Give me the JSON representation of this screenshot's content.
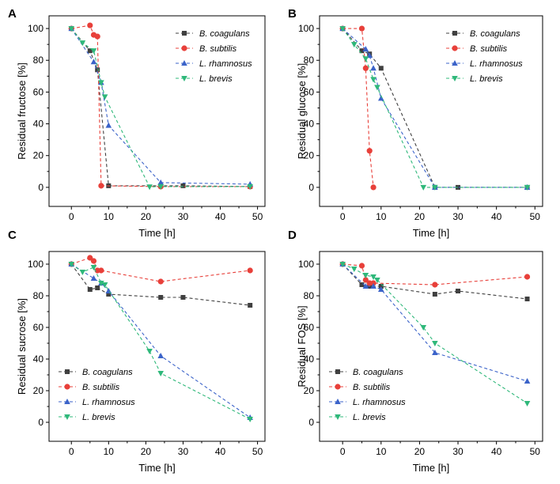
{
  "figure": {
    "series_styles": [
      {
        "name": "B. coagulans",
        "color": "#404040",
        "marker": "square"
      },
      {
        "name": "B. subtilis",
        "color": "#e8403a",
        "marker": "circle"
      },
      {
        "name": "L. rhamnosus",
        "color": "#3b63c9",
        "marker": "triangle-up"
      },
      {
        "name": "L. brevis",
        "color": "#2fb87a",
        "marker": "triangle-down"
      }
    ]
  },
  "chart_data": [
    {
      "panel": "A",
      "type": "line",
      "xlabel": "Time [h]",
      "ylabel": "Residual fructose [%]",
      "xlim": [
        -6,
        52
      ],
      "ylim": [
        -12,
        108
      ],
      "xticks": [
        0,
        10,
        20,
        30,
        40,
        50
      ],
      "yticks": [
        0,
        20,
        40,
        60,
        80,
        100
      ],
      "legend_position": "top-right",
      "series": [
        {
          "name": "B. coagulans",
          "x": [
            0,
            5,
            7,
            10,
            24,
            30,
            48
          ],
          "y": [
            100,
            86,
            74,
            1,
            1,
            1,
            0.5
          ]
        },
        {
          "name": "B. subtilis",
          "x": [
            0,
            5,
            6,
            7,
            8,
            24,
            48
          ],
          "y": [
            100,
            102,
            96,
            95,
            1,
            0.5,
            0.5
          ]
        },
        {
          "name": "L. rhamnosus",
          "x": [
            0,
            6,
            8,
            10,
            24,
            48
          ],
          "y": [
            100,
            79,
            66,
            39,
            3,
            2
          ]
        },
        {
          "name": "L. brevis",
          "x": [
            0,
            3,
            6,
            8,
            9,
            21,
            24,
            48
          ],
          "y": [
            100,
            91,
            86,
            66,
            57,
            0.3,
            0.5,
            0.5
          ]
        }
      ]
    },
    {
      "panel": "B",
      "type": "line",
      "xlabel": "Time [h]",
      "ylabel": "Residual glucose [%]",
      "xlim": [
        -6,
        52
      ],
      "ylim": [
        -12,
        108
      ],
      "xticks": [
        0,
        10,
        20,
        30,
        40,
        50
      ],
      "yticks": [
        0,
        20,
        40,
        60,
        80,
        100
      ],
      "legend_position": "top-right",
      "series": [
        {
          "name": "B. coagulans",
          "x": [
            0,
            5,
            7,
            10,
            24,
            30,
            48
          ],
          "y": [
            100,
            86,
            84,
            75,
            0,
            0,
            0
          ]
        },
        {
          "name": "B. subtilis",
          "x": [
            0,
            5,
            6,
            7,
            8
          ],
          "y": [
            100,
            100,
            75,
            23,
            0
          ]
        },
        {
          "name": "L. rhamnosus",
          "x": [
            0,
            6,
            7,
            8,
            10,
            24,
            48
          ],
          "y": [
            100,
            87,
            83,
            75,
            56,
            0,
            0
          ]
        },
        {
          "name": "L. brevis",
          "x": [
            0,
            3,
            6,
            8,
            9,
            21,
            24,
            48
          ],
          "y": [
            100,
            90,
            81,
            68,
            63,
            0,
            0,
            0
          ]
        }
      ]
    },
    {
      "panel": "C",
      "type": "line",
      "xlabel": "Time [h]",
      "ylabel": "Residual sucrose [%]",
      "xlim": [
        -6,
        52
      ],
      "ylim": [
        -12,
        108
      ],
      "xticks": [
        0,
        10,
        20,
        30,
        40,
        50
      ],
      "yticks": [
        0,
        20,
        40,
        60,
        80,
        100
      ],
      "legend_position": "bottom-left",
      "series": [
        {
          "name": "B. coagulans",
          "x": [
            0,
            5,
            7,
            10,
            24,
            30,
            48
          ],
          "y": [
            100,
            84,
            85,
            81,
            79,
            79,
            74
          ]
        },
        {
          "name": "B. subtilis",
          "x": [
            0,
            5,
            6,
            7,
            8,
            24,
            48
          ],
          "y": [
            100,
            104,
            102,
            96,
            96,
            89,
            96
          ]
        },
        {
          "name": "L. rhamnosus",
          "x": [
            0,
            6,
            8,
            10,
            24,
            48
          ],
          "y": [
            100,
            91,
            88,
            83,
            42,
            3
          ]
        },
        {
          "name": "L. brevis",
          "x": [
            0,
            3,
            6,
            8,
            9,
            21,
            24,
            48
          ],
          "y": [
            100,
            95,
            98,
            88,
            87,
            45,
            31,
            2
          ]
        }
      ]
    },
    {
      "panel": "D",
      "type": "line",
      "xlabel": "Time [h]",
      "ylabel": "Residual FOS [%]",
      "xlim": [
        -6,
        52
      ],
      "ylim": [
        -12,
        108
      ],
      "xticks": [
        0,
        10,
        20,
        30,
        40,
        50
      ],
      "yticks": [
        0,
        20,
        40,
        60,
        80,
        100
      ],
      "legend_position": "bottom-left",
      "series": [
        {
          "name": "B. coagulans",
          "x": [
            0,
            5,
            7,
            10,
            24,
            30,
            48
          ],
          "y": [
            100,
            87,
            86,
            86,
            81,
            83,
            78
          ]
        },
        {
          "name": "B. subtilis",
          "x": [
            0,
            5,
            6,
            7,
            8,
            24,
            48
          ],
          "y": [
            100,
            99,
            90,
            88,
            88,
            87,
            92
          ]
        },
        {
          "name": "L. rhamnosus",
          "x": [
            0,
            6,
            8,
            10,
            24,
            48
          ],
          "y": [
            100,
            86,
            86,
            84,
            44,
            26
          ]
        },
        {
          "name": "L. brevis",
          "x": [
            0,
            3,
            6,
            8,
            9,
            21,
            24,
            48
          ],
          "y": [
            100,
            97,
            93,
            92,
            90,
            60,
            50,
            12
          ]
        }
      ]
    }
  ]
}
